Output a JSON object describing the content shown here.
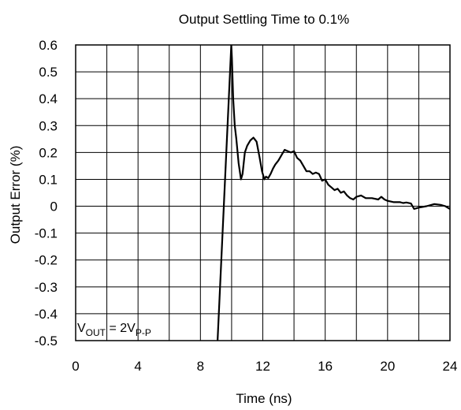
{
  "chart_data": {
    "type": "line",
    "title": "Output Settling Time to 0.1%",
    "xlabel": "Time (ns)",
    "ylabel": "Output Error (%)",
    "xlim": [
      0,
      24
    ],
    "ylim": [
      -0.5,
      0.6
    ],
    "x_ticks": [
      0,
      4,
      8,
      12,
      16,
      20,
      24
    ],
    "x_tick_labels": [
      "0",
      "4",
      "8",
      "12",
      "16",
      "20",
      "24"
    ],
    "x_grid_step": 2,
    "y_ticks": [
      0.6,
      0.5,
      0.4,
      0.3,
      0.2,
      0.1,
      0,
      -0.1,
      -0.2,
      -0.3,
      -0.4,
      -0.5
    ],
    "y_tick_labels": [
      "0.6",
      "0.5",
      "0.4",
      "0.3",
      "0.2",
      "0.1",
      "0",
      "-0.1",
      "-0.2",
      "-0.3",
      "-0.4",
      "-0.5"
    ],
    "grid": true,
    "annotation": {
      "main": "V",
      "sub1": "OUT",
      "mid": " = 2V",
      "sub2": "P-P"
    },
    "series": [
      {
        "x": [
          9.05,
          9.1,
          9.98,
          10.02,
          10.1,
          10.2,
          10.3,
          10.45,
          10.6,
          10.7,
          10.85,
          11.0,
          11.2,
          11.4,
          11.6,
          11.8,
          11.95,
          12.1,
          12.2,
          12.35,
          12.5,
          12.65,
          12.8,
          13.0,
          13.2,
          13.4,
          13.6,
          13.8,
          14.0,
          14.2,
          14.4,
          14.6,
          14.8,
          15.0,
          15.2,
          15.4,
          15.6,
          15.8,
          16.0,
          16.2,
          16.4,
          16.6,
          16.8,
          17.0,
          17.2,
          17.4,
          17.6,
          17.8,
          18.0,
          18.3,
          18.6,
          19.0,
          19.4,
          19.6,
          19.8,
          20.0,
          20.4,
          20.8,
          21.0,
          21.2,
          21.5,
          21.7,
          22.0,
          22.5,
          23.0,
          23.4,
          23.7,
          24.0
        ],
        "y": [
          -0.5,
          -0.5,
          0.6,
          0.55,
          0.4,
          0.3,
          0.25,
          0.16,
          0.1,
          0.12,
          0.2,
          0.225,
          0.245,
          0.255,
          0.24,
          0.18,
          0.13,
          0.1,
          0.11,
          0.105,
          0.12,
          0.14,
          0.155,
          0.17,
          0.19,
          0.21,
          0.205,
          0.2,
          0.205,
          0.18,
          0.17,
          0.15,
          0.13,
          0.13,
          0.12,
          0.125,
          0.12,
          0.095,
          0.1,
          0.08,
          0.07,
          0.06,
          0.065,
          0.05,
          0.055,
          0.04,
          0.03,
          0.025,
          0.035,
          0.04,
          0.03,
          0.03,
          0.025,
          0.035,
          0.025,
          0.02,
          0.015,
          0.015,
          0.012,
          0.014,
          0.01,
          -0.01,
          -0.005,
          0.0,
          0.008,
          0.005,
          0.0,
          -0.01
        ]
      }
    ]
  }
}
